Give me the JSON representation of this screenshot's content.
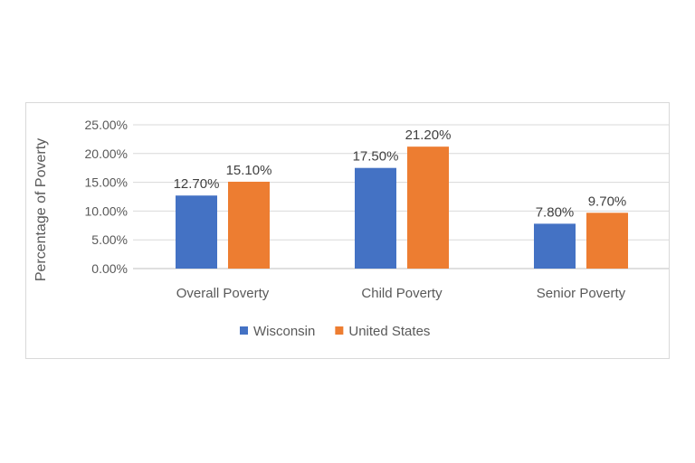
{
  "chart_data": {
    "type": "bar",
    "title": "",
    "xlabel": "",
    "ylabel": "Percentage of Poverty",
    "categories": [
      "Overall Poverty",
      "Child Poverty",
      "Senior Poverty"
    ],
    "series": [
      {
        "name": "Wisconsin",
        "values": [
          12.7,
          17.5,
          7.8
        ],
        "labels": [
          "12.70%",
          "17.50%",
          "7.80%"
        ],
        "color": "#4472c4"
      },
      {
        "name": "United States",
        "values": [
          15.1,
          21.2,
          9.7
        ],
        "labels": [
          "15.10%",
          "21.20%",
          "9.70%"
        ],
        "color": "#ed7d31"
      }
    ],
    "ylim": [
      0,
      25
    ],
    "yticks": [
      0,
      5,
      10,
      15,
      20,
      25
    ],
    "ytick_labels": [
      "0.00%",
      "5.00%",
      "10.00%",
      "15.00%",
      "20.00%",
      "25.00%"
    ],
    "grid": true,
    "legend": "bottom"
  }
}
